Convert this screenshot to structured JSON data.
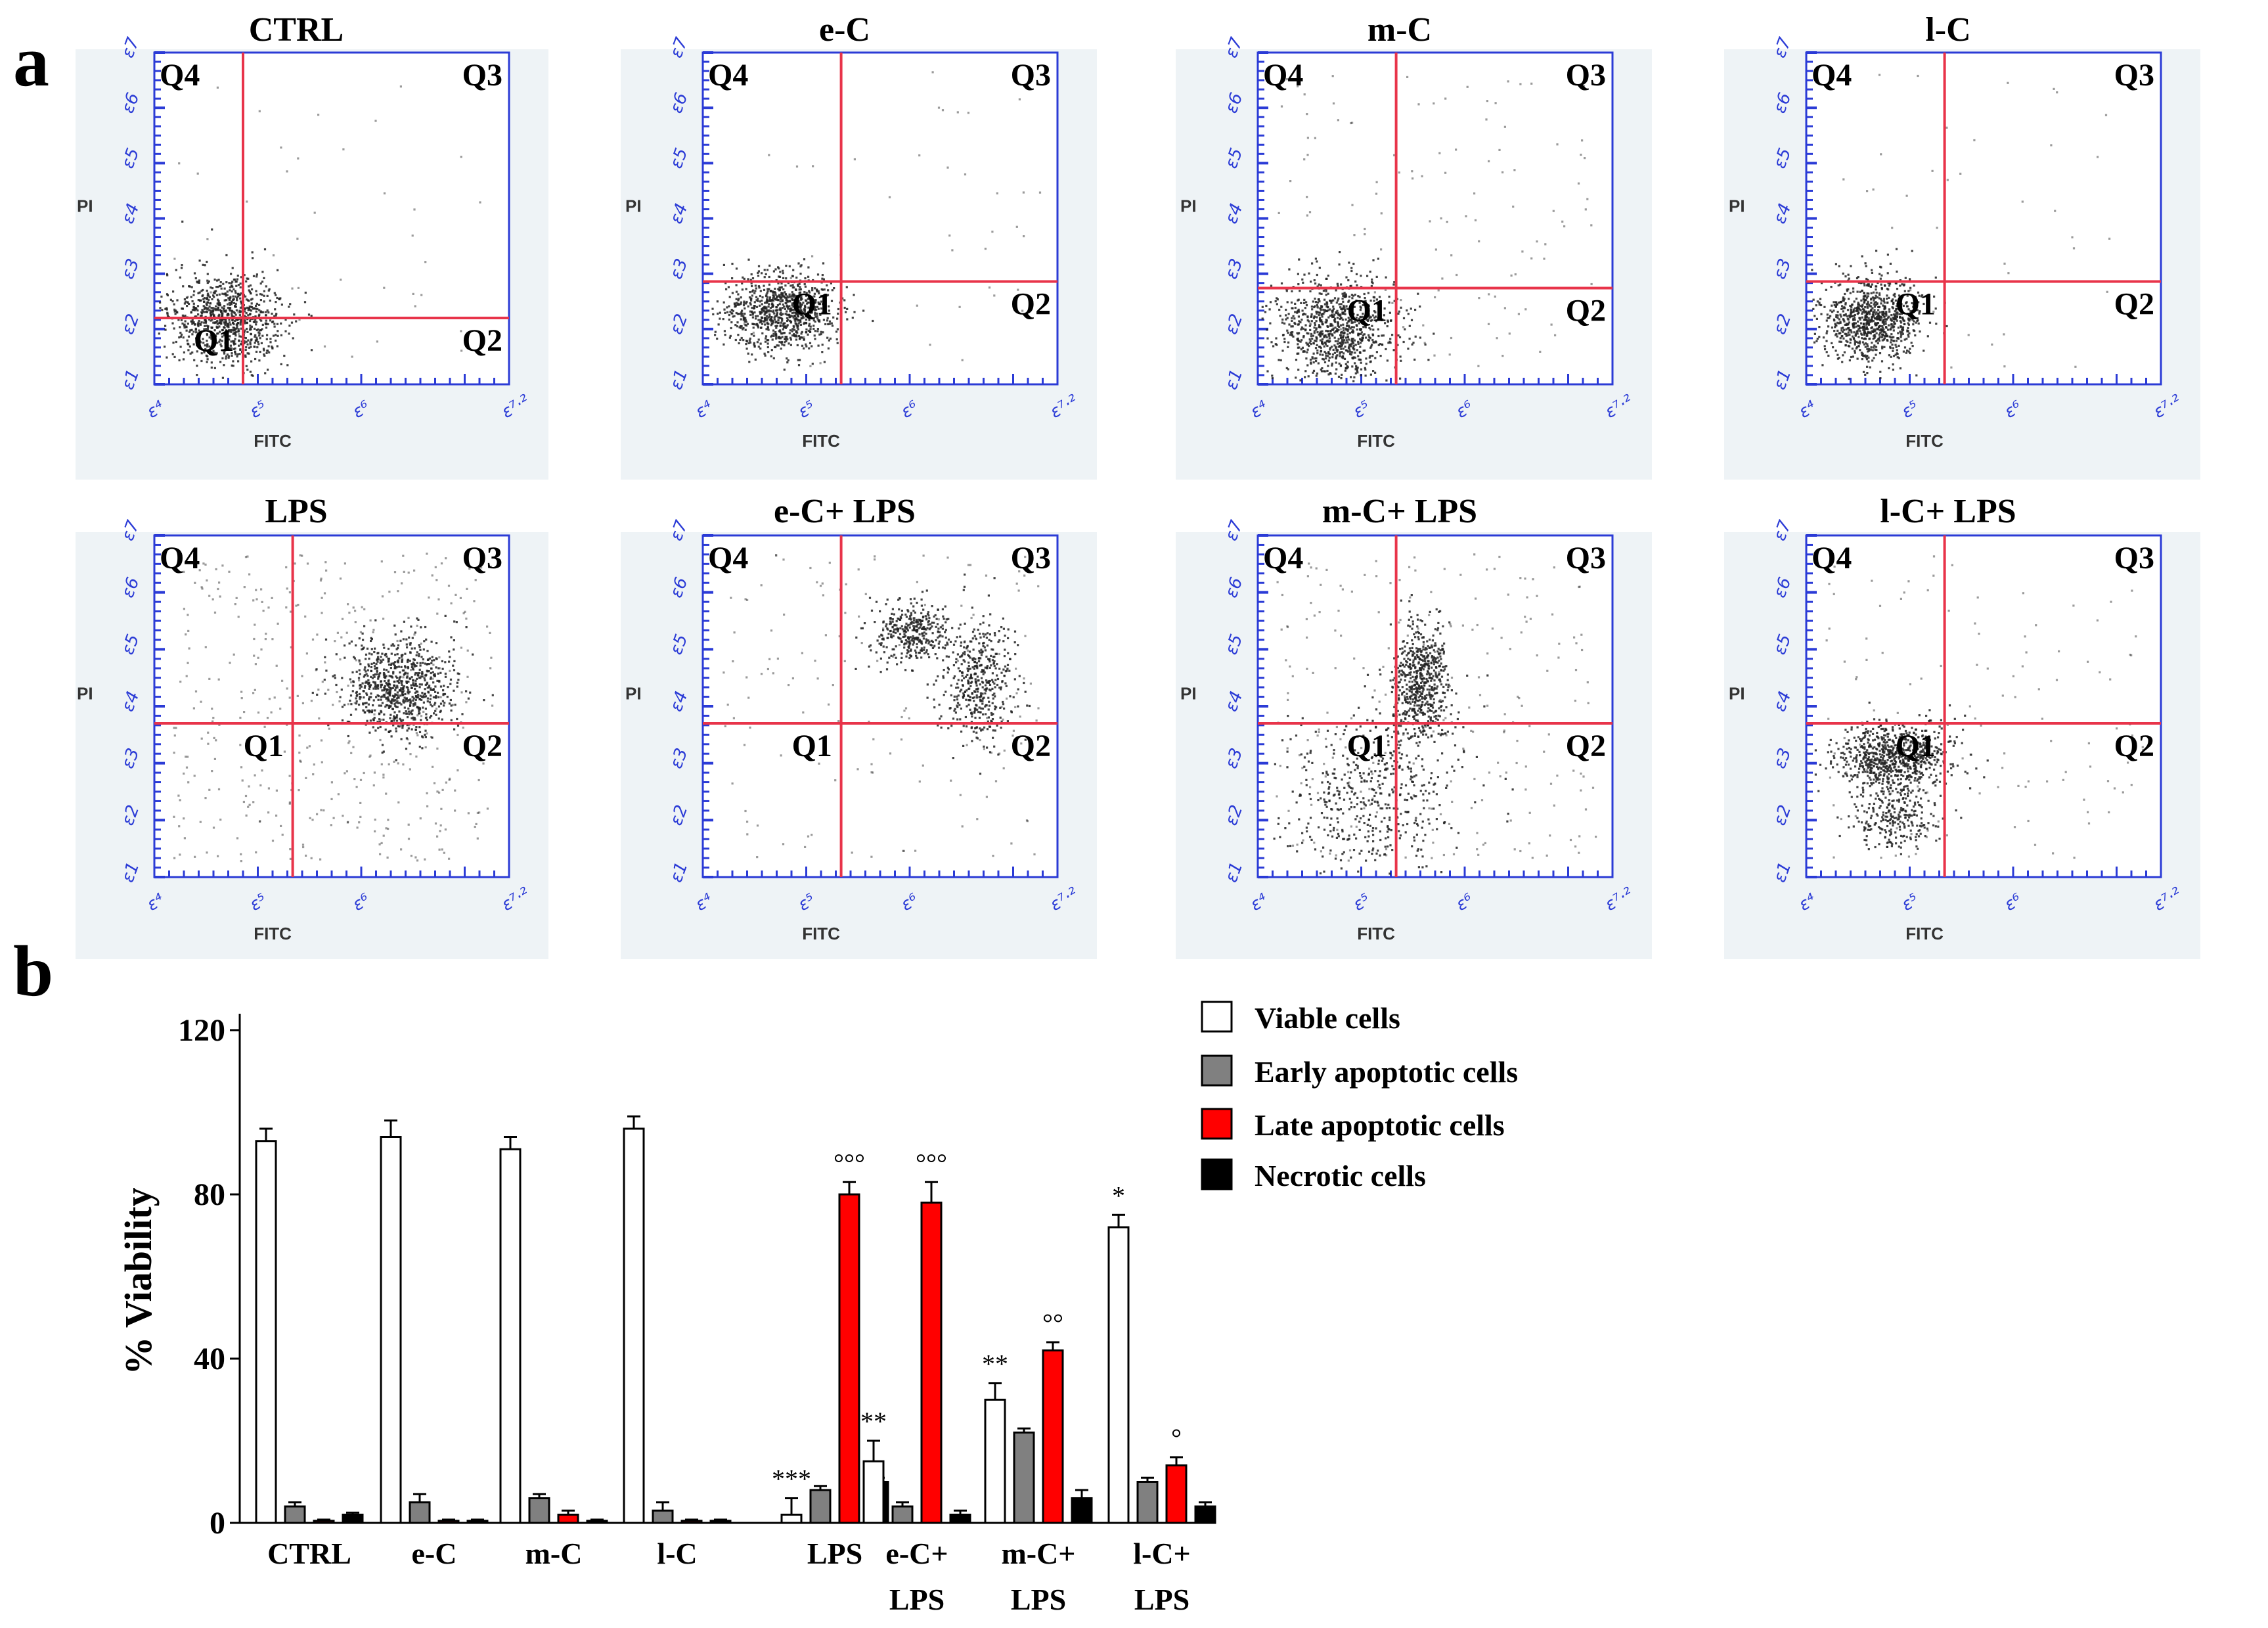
{
  "figure": {
    "panel_a_label": "a",
    "panel_b_label": "b"
  },
  "flow_panels": [
    {
      "title": "CTRL",
      "dist": "ctrl"
    },
    {
      "title": "e-C",
      "dist": "ec"
    },
    {
      "title": "m-C",
      "dist": "mc"
    },
    {
      "title": "l-C",
      "dist": "lc"
    },
    {
      "title": "LPS",
      "dist": "lps"
    },
    {
      "title": "e-C+ LPS",
      "dist": "eclps"
    },
    {
      "title": "m-C+ LPS",
      "dist": "mclps"
    },
    {
      "title": "l-C+ LPS",
      "dist": "lclps"
    }
  ],
  "flow_axes": {
    "xlabel": "FITC",
    "ylabel": "PI",
    "quadrants": [
      "Q4",
      "Q3",
      "Q1",
      "Q2"
    ],
    "x_ticks": [
      "10^4",
      "10^5",
      "10^6",
      "10^7.2"
    ],
    "y_ticks": [
      "10^1",
      "10^2",
      "10^3",
      "10^4",
      "10^5",
      "10^6",
      "10^7"
    ]
  },
  "colors": {
    "axis_blue": "#2b3bd6",
    "gate_red": "#e8344a",
    "panel_bg": "#eef3f6",
    "viable": "#ffffff",
    "early": "#808080",
    "late": "#ff0000",
    "necrotic": "#000000"
  },
  "chart_data": {
    "type": "bar",
    "ylabel": "% Viability",
    "ylim": [
      0,
      120
    ],
    "yticks": [
      0,
      40,
      80,
      120
    ],
    "categories": [
      "CTRL",
      "e-C",
      "m-C",
      "l-C",
      "LPS",
      "e-C+\nLPS",
      "m-C+\nLPS",
      "l-C+\nLPS"
    ],
    "series": [
      {
        "name": "Viable cells",
        "color": "#ffffff",
        "values": [
          93,
          94,
          91,
          96,
          2,
          15,
          30,
          72
        ],
        "errors": [
          3,
          4,
          3,
          3,
          4,
          5,
          4,
          3
        ]
      },
      {
        "name": "Early apoptotic cells",
        "color": "#808080",
        "values": [
          4,
          5,
          6,
          3,
          8,
          4,
          22,
          10
        ],
        "errors": [
          1,
          2,
          1,
          2,
          1,
          1,
          1,
          1
        ]
      },
      {
        "name": "Late apoptotic cells",
        "color": "#ff0000",
        "values": [
          0.5,
          0.5,
          2,
          0.5,
          80,
          78,
          42,
          14
        ],
        "errors": [
          0.3,
          0.3,
          1,
          0.3,
          3,
          5,
          2,
          2
        ]
      },
      {
        "name": "Necrotic cells",
        "color": "#000000",
        "values": [
          2,
          0.5,
          0.5,
          0.5,
          10,
          2,
          6,
          4
        ],
        "errors": [
          0.5,
          0.3,
          0.3,
          0.3,
          1,
          1,
          2,
          1
        ]
      }
    ],
    "annotations": [
      {
        "text": "***",
        "category": 4,
        "series": 0
      },
      {
        "text": "°°°",
        "category": 4,
        "series": 2
      },
      {
        "text": "**",
        "category": 5,
        "series": 0
      },
      {
        "text": "°°°",
        "category": 5,
        "series": 2
      },
      {
        "text": "**",
        "category": 6,
        "series": 0
      },
      {
        "text": "°°",
        "category": 6,
        "series": 2
      },
      {
        "text": "*",
        "category": 7,
        "series": 0
      },
      {
        "text": "°",
        "category": 7,
        "series": 2
      }
    ],
    "legend": "top-right"
  }
}
